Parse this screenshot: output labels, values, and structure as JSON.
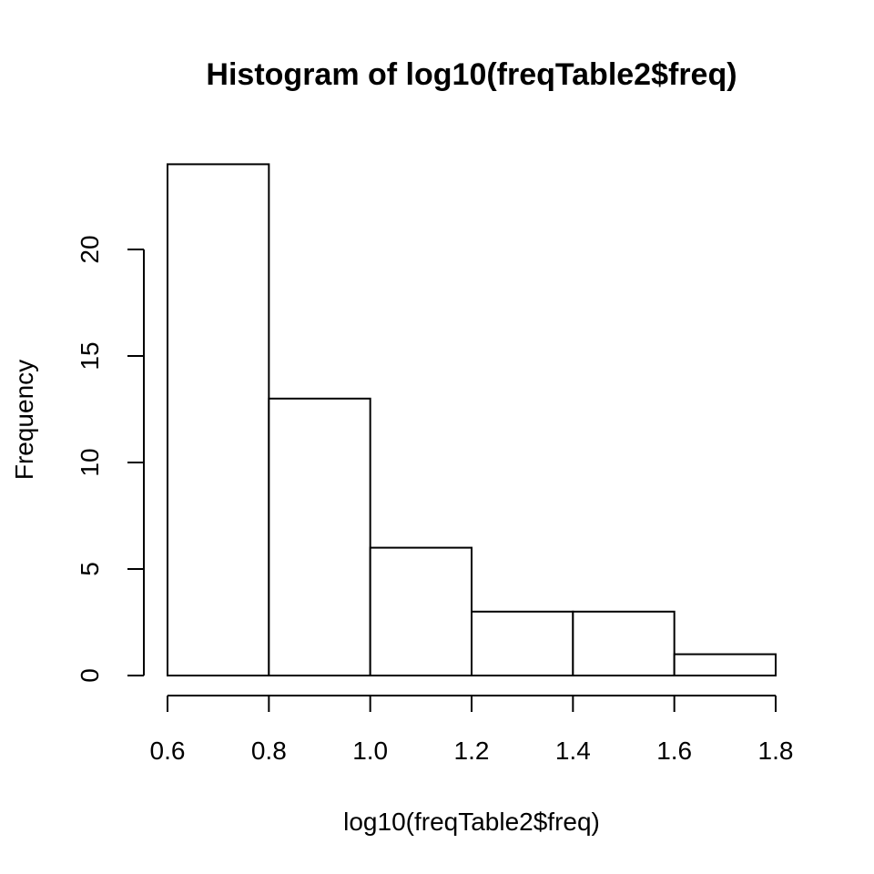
{
  "chart_data": {
    "type": "bar",
    "title": "Histogram of log10(freqTable2$freq)",
    "xlabel": "log10(freqTable2$freq)",
    "ylabel": "Frequency",
    "bins": [
      {
        "from": 0.6,
        "to": 0.8,
        "count": 24
      },
      {
        "from": 0.8,
        "to": 1.0,
        "count": 13
      },
      {
        "from": 1.0,
        "to": 1.2,
        "count": 6
      },
      {
        "from": 1.2,
        "to": 1.4,
        "count": 3
      },
      {
        "from": 1.4,
        "to": 1.6,
        "count": 3
      },
      {
        "from": 1.6,
        "to": 1.8,
        "count": 1
      }
    ],
    "xlim": [
      0.6,
      1.8
    ],
    "ylim": [
      0,
      24
    ],
    "x_ticks": [
      0.6,
      0.8,
      1.0,
      1.2,
      1.4,
      1.6,
      1.8
    ],
    "x_tick_labels": [
      "0.6",
      "0.8",
      "1.0",
      "1.2",
      "1.4",
      "1.6",
      "1.8"
    ],
    "y_ticks": [
      0,
      5,
      10,
      15,
      20
    ],
    "y_tick_labels": [
      "0",
      "5",
      "10",
      "15",
      "20"
    ],
    "grid": false,
    "bar_fill": "#ffffff",
    "bar_stroke": "#000000"
  }
}
